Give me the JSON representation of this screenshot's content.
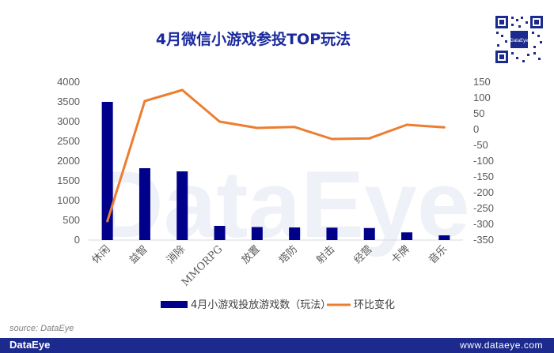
{
  "title": "4月微信小游戏参投TOP玩法",
  "watermark": "DataEye",
  "source": "source: DataEye",
  "footer": {
    "brand": "DataEye",
    "url": "www.dataeye.com"
  },
  "colors": {
    "bar": "#00008b",
    "line": "#ed7d31",
    "title": "#1a2a9c",
    "footer": "#1b2a8c"
  },
  "chart_data": {
    "type": "bar",
    "categories": [
      "休闲",
      "益智",
      "消除",
      "MMORPG",
      "放置",
      "塔防",
      "射击",
      "经营",
      "卡牌",
      "音乐"
    ],
    "series": [
      {
        "name": "4月小游戏投放游戏数（玩法）",
        "type": "bar",
        "axis": "left",
        "values": [
          3500,
          1820,
          1740,
          360,
          330,
          320,
          315,
          305,
          195,
          120
        ]
      },
      {
        "name": "环比变化",
        "type": "line",
        "axis": "right",
        "values": [
          -290,
          90,
          125,
          25,
          5,
          8,
          -30,
          -28,
          15,
          7
        ]
      }
    ],
    "y_left": {
      "min": 0,
      "max": 4000,
      "step": 500
    },
    "y_right": {
      "min": -350,
      "max": 150,
      "step": 50
    },
    "legend": "bottom",
    "grid": false
  }
}
